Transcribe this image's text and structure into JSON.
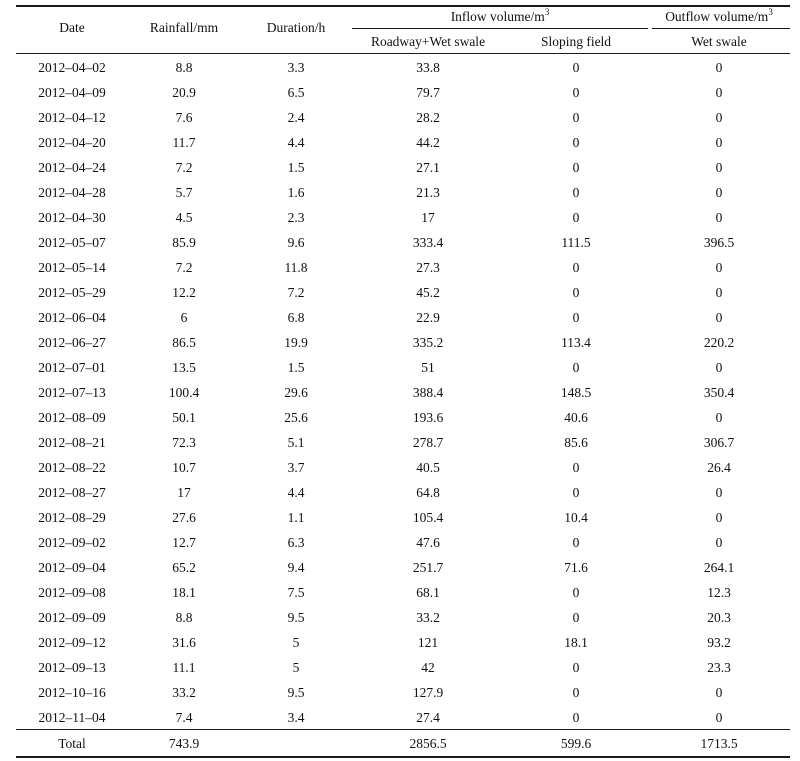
{
  "headers": {
    "date": "Date",
    "rainfall": "Rainfall/mm",
    "duration": "Duration/h",
    "inflow_group": "Inflow volume/m",
    "inflow_unit_exp": "3",
    "outflow_group": "Outflow volume/m",
    "outflow_unit_exp": "3",
    "roadway": "Roadway+Wet swale",
    "sloping": "Sloping field",
    "wet_swale": "Wet swale"
  },
  "rows": [
    [
      "2012–04–02",
      "8.8",
      "3.3",
      "33.8",
      "0",
      "0"
    ],
    [
      "2012–04–09",
      "20.9",
      "6.5",
      "79.7",
      "0",
      "0"
    ],
    [
      "2012–04–12",
      "7.6",
      "2.4",
      "28.2",
      "0",
      "0"
    ],
    [
      "2012–04–20",
      "11.7",
      "4.4",
      "44.2",
      "0",
      "0"
    ],
    [
      "2012–04–24",
      "7.2",
      "1.5",
      "27.1",
      "0",
      "0"
    ],
    [
      "2012–04–28",
      "5.7",
      "1.6",
      "21.3",
      "0",
      "0"
    ],
    [
      "2012–04–30",
      "4.5",
      "2.3",
      "17",
      "0",
      "0"
    ],
    [
      "2012–05–07",
      "85.9",
      "9.6",
      "333.4",
      "111.5",
      "396.5"
    ],
    [
      "2012–05–14",
      "7.2",
      "11.8",
      "27.3",
      "0",
      "0"
    ],
    [
      "2012–05–29",
      "12.2",
      "7.2",
      "45.2",
      "0",
      "0"
    ],
    [
      "2012–06–04",
      "6",
      "6.8",
      "22.9",
      "0",
      "0"
    ],
    [
      "2012–06–27",
      "86.5",
      "19.9",
      "335.2",
      "113.4",
      "220.2"
    ],
    [
      "2012–07–01",
      "13.5",
      "1.5",
      "51",
      "0",
      "0"
    ],
    [
      "2012–07–13",
      "100.4",
      "29.6",
      "388.4",
      "148.5",
      "350.4"
    ],
    [
      "2012–08–09",
      "50.1",
      "25.6",
      "193.6",
      "40.6",
      "0"
    ],
    [
      "2012–08–21",
      "72.3",
      "5.1",
      "278.7",
      "85.6",
      "306.7"
    ],
    [
      "2012–08–22",
      "10.7",
      "3.7",
      "40.5",
      "0",
      "26.4"
    ],
    [
      "2012–08–27",
      "17",
      "4.4",
      "64.8",
      "0",
      "0"
    ],
    [
      "2012–08–29",
      "27.6",
      "1.1",
      "105.4",
      "10.4",
      "0"
    ],
    [
      "2012–09–02",
      "12.7",
      "6.3",
      "47.6",
      "0",
      "0"
    ],
    [
      "2012–09–04",
      "65.2",
      "9.4",
      "251.7",
      "71.6",
      "264.1"
    ],
    [
      "2012–09–08",
      "18.1",
      "7.5",
      "68.1",
      "0",
      "12.3"
    ],
    [
      "2012–09–09",
      "8.8",
      "9.5",
      "33.2",
      "0",
      "20.3"
    ],
    [
      "2012–09–12",
      "31.6",
      "5",
      "121",
      "18.1",
      "93.2"
    ],
    [
      "2012–09–13",
      "11.1",
      "5",
      "42",
      "0",
      "23.3"
    ],
    [
      "2012–10–16",
      "33.2",
      "9.5",
      "127.9",
      "0",
      "0"
    ],
    [
      "2012–11–04",
      "7.4",
      "3.4",
      "27.4",
      "0",
      "0"
    ]
  ],
  "total": [
    "Total",
    "743.9",
    "",
    "2856.5",
    "599.6",
    "1713.5"
  ]
}
